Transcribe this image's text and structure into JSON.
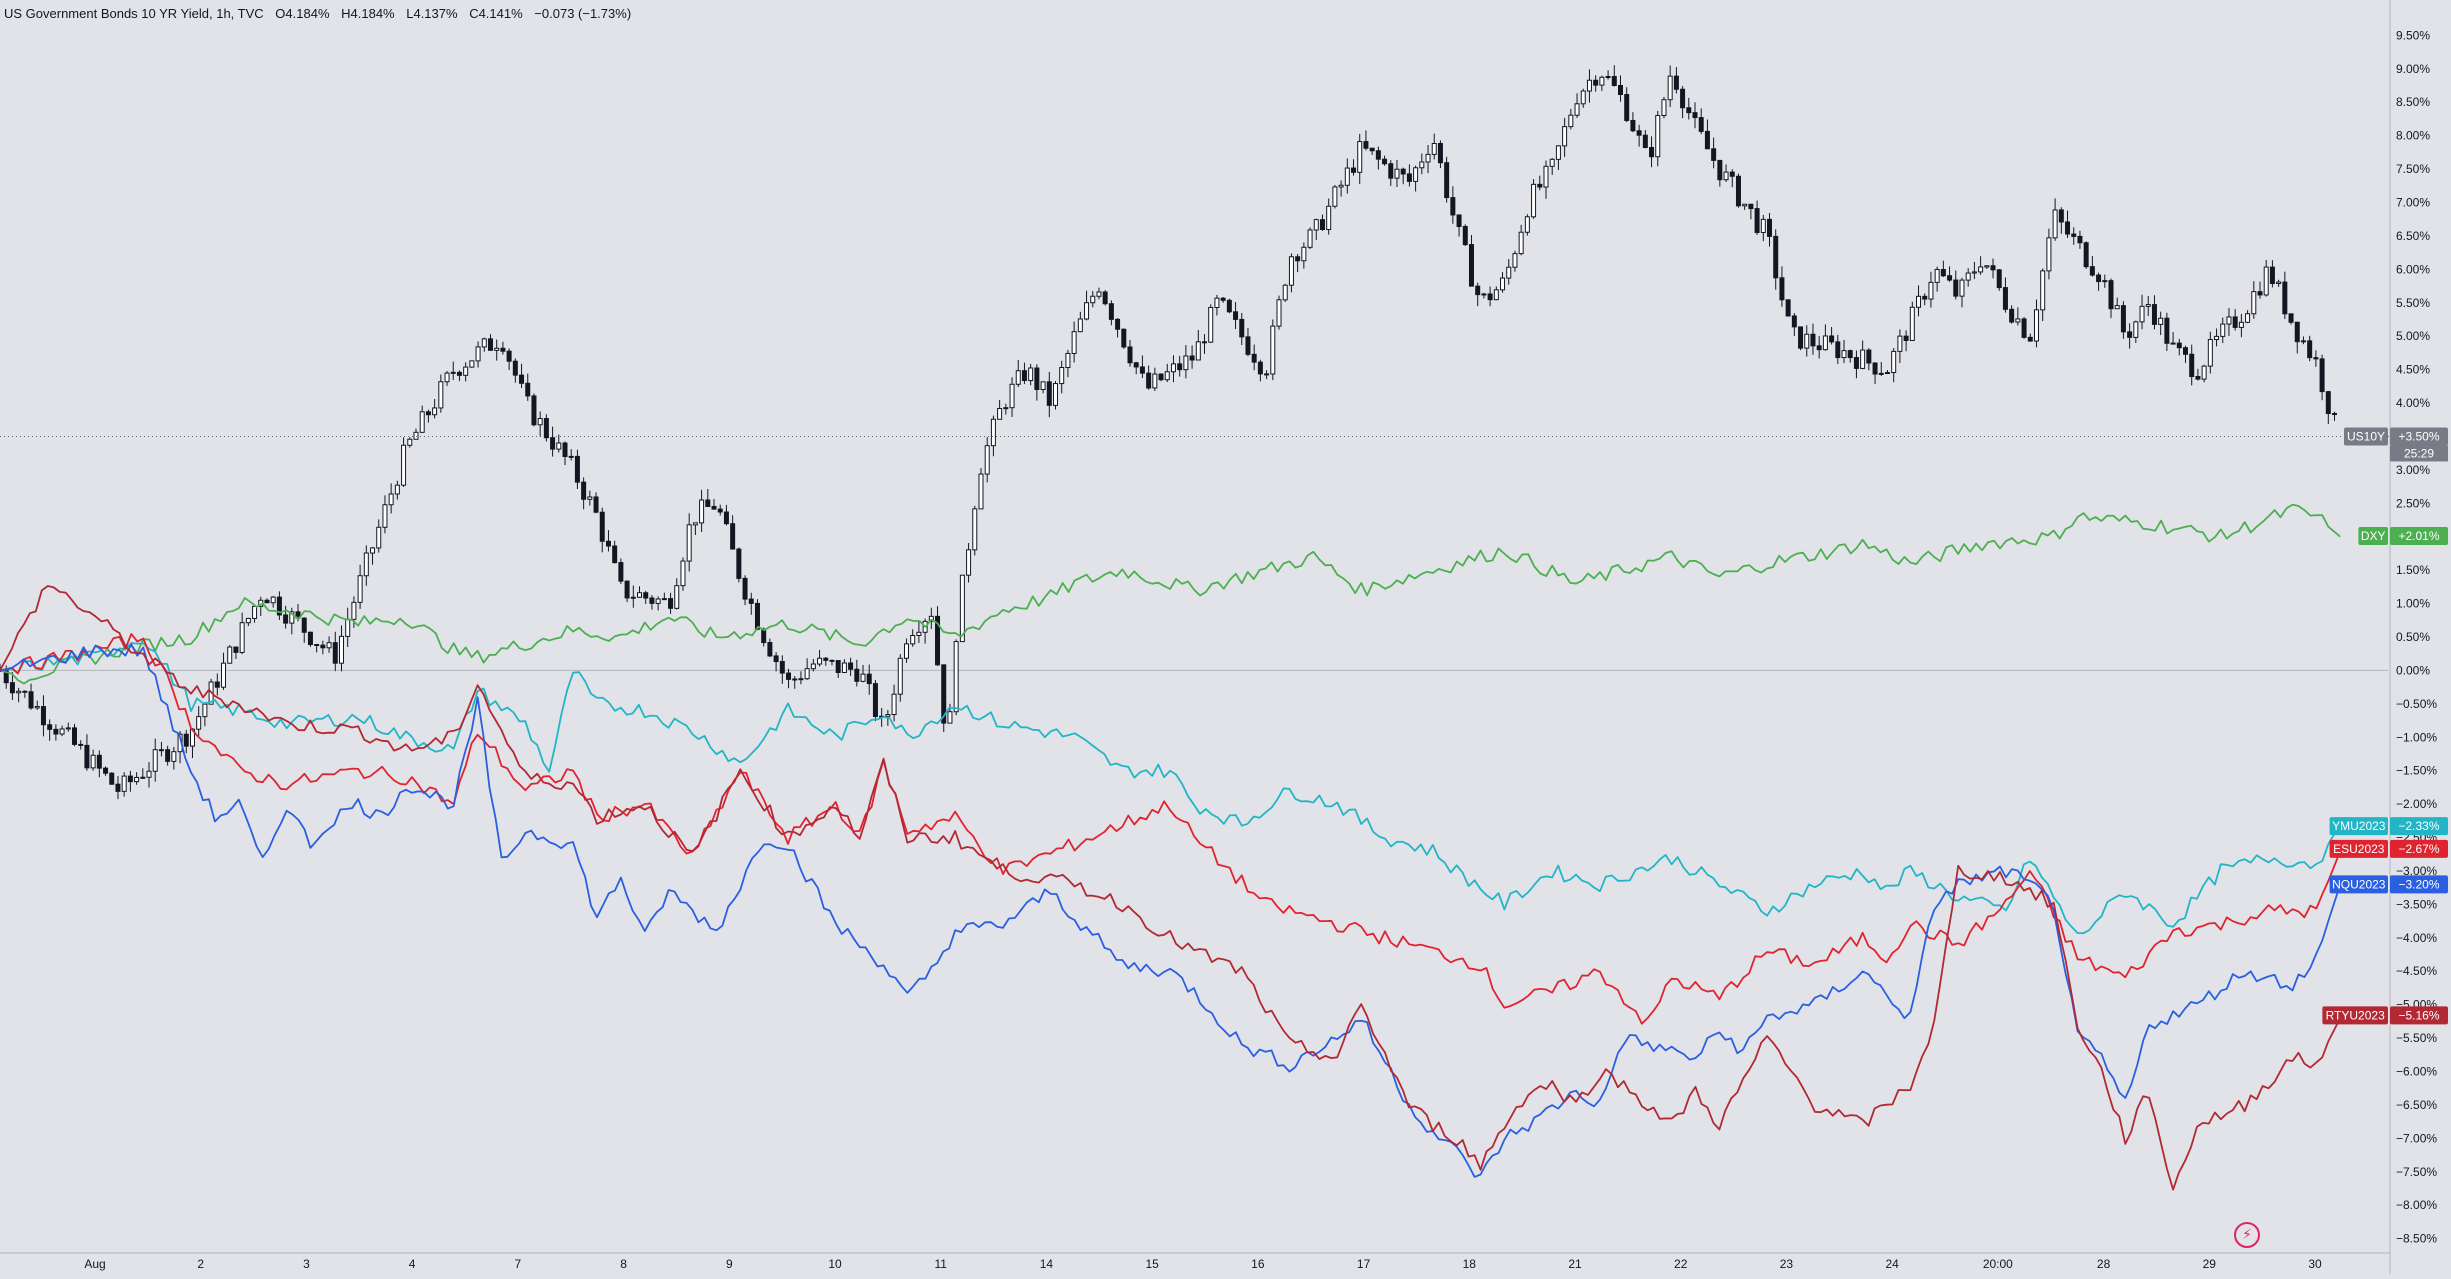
{
  "header": {
    "symbol_desc": "US Government Bonds 10 YR Yield, 1h, TVC",
    "open": "O4.184%",
    "high": "H4.184%",
    "low": "L4.137%",
    "close": "C4.141%",
    "change": "−0.073 (−1.73%)"
  },
  "chart_data": {
    "type": "line",
    "main_series_type": "candlestick",
    "x_tick_labels": [
      "Aug",
      "2",
      "3",
      "4",
      "7",
      "8",
      "9",
      "10",
      "11",
      "14",
      "15",
      "16",
      "17",
      "18",
      "21",
      "22",
      "23",
      "24",
      "20:00",
      "28",
      "29",
      "30"
    ],
    "y_axis": {
      "unit": "%",
      "ylim": [
        -8.7,
        9.7
      ],
      "tick_labels": [
        "9.50%",
        "9.00%",
        "8.50%",
        "8.00%",
        "7.50%",
        "7.00%",
        "6.50%",
        "6.00%",
        "5.50%",
        "5.00%",
        "4.50%",
        "4.00%",
        "3.50%",
        "3.00%",
        "2.50%",
        "2.00%",
        "1.50%",
        "1.00%",
        "0.50%",
        "0.00%",
        "−0.50%",
        "−1.00%",
        "−1.50%",
        "−2.00%",
        "−2.50%",
        "−3.00%",
        "−3.50%",
        "−4.00%",
        "−4.50%",
        "−5.00%",
        "−5.50%",
        "−6.00%",
        "−6.50%",
        "−7.00%",
        "−7.50%",
        "−8.00%",
        "−8.50%"
      ]
    },
    "countdown": "25:29",
    "series": [
      {
        "name": "US10Y",
        "label": "US10Y",
        "last_label": "+3.50%",
        "color": "#131722",
        "kind": "candle",
        "x": [
          0,
          5,
          8,
          11,
          14,
          17,
          19,
          21,
          22,
          23,
          24,
          25,
          26,
          28,
          29,
          30,
          31,
          31.9,
          33,
          34,
          36,
          37,
          38,
          39,
          39.7,
          40,
          41,
          42,
          43,
          44,
          45,
          46,
          47,
          48,
          50,
          51,
          52,
          53,
          54,
          55,
          57,
          59,
          60,
          61,
          62,
          63,
          64,
          65,
          66,
          67,
          68,
          69,
          70,
          71,
          72,
          73,
          74,
          75,
          77,
          79,
          80,
          81,
          82,
          83,
          84,
          85,
          86,
          88,
          89,
          90,
          91,
          92,
          93,
          94,
          95,
          96,
          97,
          97.9
        ],
        "values": [
          0,
          -1.8,
          -0.9,
          1.2,
          0.2,
          3.3,
          4.5,
          5.0,
          4.0,
          3.5,
          3.0,
          2.3,
          1.2,
          1.0,
          2.3,
          2.5,
          1.4,
          0.6,
          -0.2,
          0.1,
          0.0,
          -0.9,
          0.6,
          0.9,
          -1.2,
          0.5,
          3.0,
          4.0,
          4.5,
          4.0,
          5.0,
          5.8,
          5.0,
          4.2,
          4.7,
          5.5,
          5.0,
          4.5,
          6.2,
          6.5,
          7.8,
          7.3,
          8.0,
          6.6,
          5.5,
          5.8,
          7.0,
          7.5,
          8.6,
          9.0,
          8.5,
          7.6,
          9.0,
          8.1,
          7.5,
          7.0,
          6.5,
          5.0,
          4.8,
          4.5,
          5.2,
          6.0,
          5.6,
          6.2,
          5.5,
          5.0,
          6.8,
          5.9,
          5.0,
          5.5,
          4.8,
          4.5,
          5.0,
          5.4,
          6.0,
          5.2,
          4.6,
          3.5
        ]
      },
      {
        "name": "DXY",
        "label": "DXY",
        "last_label": "+2.01%",
        "color": "#4caf50",
        "kind": "line",
        "x": [
          0,
          1,
          5,
          8,
          10,
          12,
          15,
          17,
          19,
          20,
          22,
          24,
          26,
          28,
          30,
          33,
          36,
          38,
          40,
          42,
          44,
          45,
          47,
          50,
          53,
          55,
          57,
          60,
          63,
          66,
          68,
          70,
          72,
          74,
          77,
          78,
          80,
          83,
          86,
          87,
          90,
          93,
          96,
          97,
          98
        ],
        "values": [
          0,
          -0.1,
          0.3,
          0.5,
          1.0,
          0.9,
          0.7,
          0.8,
          0.3,
          0.2,
          0.4,
          0.6,
          0.5,
          0.8,
          0.5,
          0.7,
          0.4,
          0.8,
          0.5,
          0.9,
          1.1,
          1.3,
          1.5,
          1.2,
          1.5,
          1.7,
          1.2,
          1.5,
          1.8,
          1.3,
          1.5,
          1.7,
          1.4,
          1.6,
          1.8,
          1.9,
          1.6,
          1.9,
          2.0,
          2.3,
          2.2,
          2.0,
          2.4,
          2.3,
          2.0
        ]
      },
      {
        "name": "YMU2023",
        "label": "YMU2023",
        "last_label": "−2.33%",
        "color": "#22b5c5",
        "kind": "line",
        "x": [
          0,
          4,
          6,
          8,
          10,
          12,
          15,
          17,
          19,
          20,
          22,
          23,
          24,
          25,
          27,
          29,
          31,
          33,
          35,
          37,
          38,
          40,
          42,
          45,
          47,
          49,
          50,
          52,
          54,
          56,
          58,
          60,
          61,
          63,
          65,
          67,
          70,
          72,
          74,
          76,
          78,
          79,
          80,
          82,
          84,
          85,
          87,
          89,
          91,
          93,
          95,
          97,
          98
        ],
        "values": [
          0,
          0.2,
          0.5,
          -0.5,
          -0.6,
          -0.8,
          -0.7,
          -1.0,
          -1.2,
          -0.3,
          -0.8,
          -1.5,
          0.0,
          -0.5,
          -0.6,
          -0.9,
          -1.4,
          -0.6,
          -1.0,
          -0.6,
          -1.0,
          -0.5,
          -0.8,
          -1.0,
          -1.5,
          -1.5,
          -2.0,
          -2.3,
          -1.8,
          -2.0,
          -2.5,
          -2.7,
          -3.0,
          -3.5,
          -3.0,
          -3.2,
          -2.8,
          -3.2,
          -3.6,
          -3.2,
          -3.0,
          -3.3,
          -3.0,
          -3.4,
          -3.6,
          -2.8,
          -4.0,
          -3.3,
          -3.8,
          -3.0,
          -2.8,
          -2.9,
          -2.3
        ]
      },
      {
        "name": "ESU2023",
        "label": "ESU2023",
        "last_label": "−2.67%",
        "color": "#e0242f",
        "kind": "line",
        "x": [
          0,
          4,
          6,
          8,
          10,
          12,
          15,
          17,
          19,
          20,
          22,
          24,
          25,
          27,
          29,
          31,
          33,
          35,
          36,
          37,
          38,
          40,
          42,
          45,
          47,
          49,
          50,
          53,
          56,
          58,
          60,
          62,
          63,
          65,
          67,
          69,
          70,
          72,
          74,
          76,
          78,
          79,
          80,
          82,
          84,
          85,
          87,
          89,
          91,
          93,
          95,
          97,
          98
        ],
        "values": [
          0,
          0.3,
          0.5,
          -0.8,
          -1.5,
          -1.7,
          -1.5,
          -1.6,
          -2.0,
          -0.9,
          -1.8,
          -1.5,
          -2.2,
          -2.0,
          -2.8,
          -1.5,
          -2.5,
          -2.0,
          -2.5,
          -1.4,
          -2.4,
          -2.2,
          -3.0,
          -2.6,
          -2.3,
          -2.0,
          -2.5,
          -3.5,
          -3.8,
          -4.0,
          -4.2,
          -4.4,
          -5.0,
          -4.8,
          -4.5,
          -5.3,
          -4.6,
          -4.9,
          -4.2,
          -4.4,
          -4.0,
          -4.3,
          -3.8,
          -4.1,
          -3.5,
          -3.0,
          -4.3,
          -4.6,
          -3.9,
          -3.8,
          -3.6,
          -3.6,
          -2.7
        ]
      },
      {
        "name": "NQU2023",
        "label": "NQU2023",
        "last_label": "−3.20%",
        "color": "#2a5fe1",
        "kind": "line",
        "x": [
          0,
          4,
          6,
          8,
          9,
          10,
          11,
          12,
          13,
          14,
          15,
          16,
          17,
          19,
          20,
          21,
          22,
          24,
          25,
          26,
          27,
          28,
          30,
          32,
          33,
          35,
          37,
          38,
          39,
          40,
          42,
          44,
          45,
          47,
          49,
          50,
          52,
          54,
          56,
          57,
          59,
          60,
          61,
          62,
          63,
          64,
          66,
          67,
          68,
          70,
          71,
          72,
          73,
          74,
          76,
          78,
          80,
          81,
          82,
          84,
          85,
          86,
          87,
          88,
          89,
          90,
          92,
          94,
          95,
          96,
          97,
          98
        ],
        "values": [
          0,
          0.3,
          0.3,
          -1.5,
          -2.2,
          -2.0,
          -2.9,
          -2.0,
          -2.6,
          -2.2,
          -2.0,
          -2.2,
          -1.7,
          -2.0,
          -0.5,
          -2.9,
          -2.4,
          -2.6,
          -3.7,
          -3.1,
          -4.0,
          -3.3,
          -3.9,
          -2.5,
          -2.6,
          -3.8,
          -4.4,
          -4.9,
          -4.5,
          -3.9,
          -3.8,
          -3.3,
          -3.7,
          -4.4,
          -4.5,
          -4.8,
          -5.6,
          -5.9,
          -5.5,
          -5.2,
          -6.5,
          -6.9,
          -7.2,
          -7.6,
          -7.0,
          -6.8,
          -6.3,
          -6.5,
          -5.5,
          -5.7,
          -5.8,
          -5.4,
          -5.7,
          -5.2,
          -5.0,
          -4.5,
          -5.2,
          -3.5,
          -3.2,
          -3.0,
          -3.2,
          -3.5,
          -5.5,
          -5.8,
          -6.5,
          -5.3,
          -5.0,
          -4.5,
          -4.6,
          -4.7,
          -4.3,
          -3.2
        ]
      },
      {
        "name": "RTYU2023",
        "label": "RTYU2023",
        "last_label": "−5.16%",
        "color": "#b22833",
        "kind": "line",
        "x": [
          0,
          2,
          4,
          6,
          8,
          10,
          12,
          15,
          17,
          19,
          20,
          22,
          24,
          25,
          27,
          29,
          31,
          33,
          35,
          36,
          37,
          38,
          40,
          42,
          45,
          47,
          49,
          50,
          52,
          54,
          56,
          57,
          59,
          60,
          61,
          62,
          63,
          64,
          65,
          66,
          67,
          68,
          70,
          71,
          72,
          74,
          76,
          78,
          80,
          81,
          82,
          84,
          85,
          86,
          87,
          88,
          89,
          90,
          91,
          92,
          94,
          96,
          97,
          98
        ],
        "values": [
          0,
          1.3,
          0.8,
          0.2,
          -0.3,
          -0.5,
          -0.8,
          -0.9,
          -1.2,
          -1.0,
          -0.2,
          -1.6,
          -1.7,
          -2.2,
          -2.0,
          -2.8,
          -1.5,
          -2.5,
          -2.0,
          -2.5,
          -1.4,
          -2.5,
          -2.5,
          -3.0,
          -3.2,
          -3.5,
          -4.0,
          -4.2,
          -4.5,
          -5.6,
          -5.8,
          -5.0,
          -6.5,
          -6.8,
          -7.0,
          -7.4,
          -6.8,
          -6.3,
          -6.2,
          -6.5,
          -6.0,
          -6.2,
          -6.8,
          -6.3,
          -6.8,
          -5.5,
          -6.5,
          -6.8,
          -6.2,
          -5.3,
          -3.0,
          -3.1,
          -3.3,
          -3.5,
          -5.3,
          -6.0,
          -7.0,
          -6.3,
          -7.8,
          -6.8,
          -6.5,
          -5.8,
          -5.9,
          -5.2
        ]
      }
    ]
  },
  "branding": {
    "logo_icon": "bolt-icon"
  }
}
